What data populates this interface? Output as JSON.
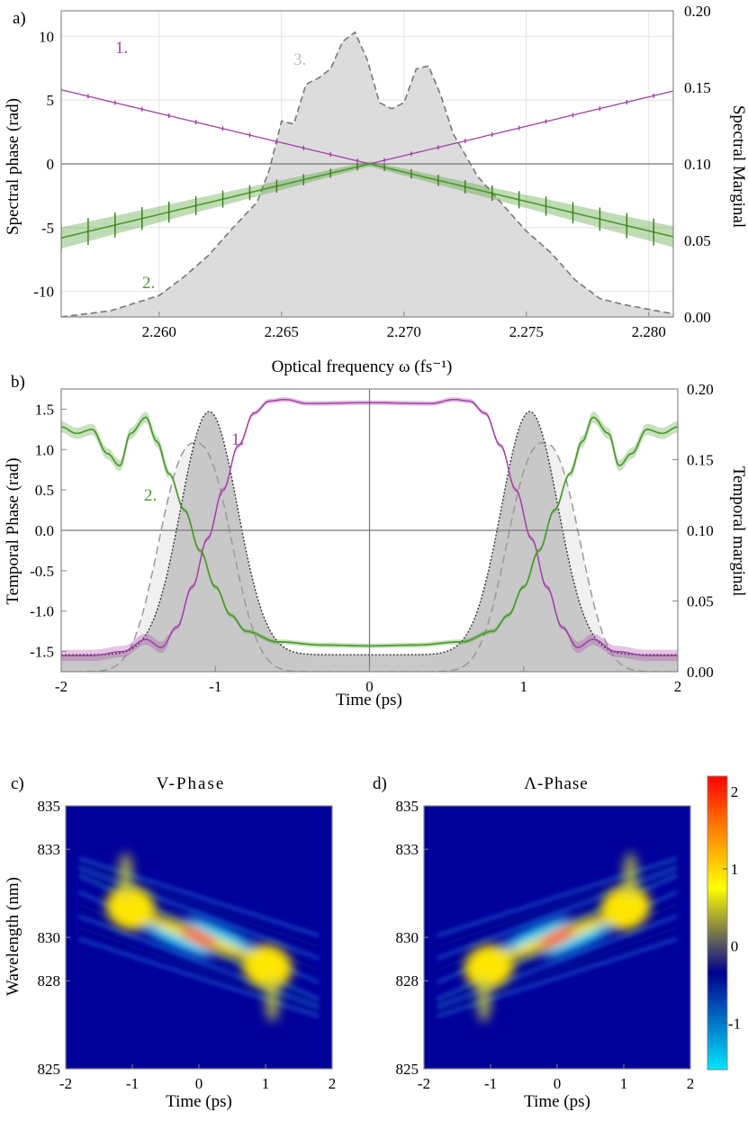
{
  "chart_data": [
    {
      "panel": "a)",
      "type": "line",
      "xlabel": "Optical frequency ω (fs⁻¹)",
      "ylabel": "Spectral phase (rad)",
      "y2label": "Spectral Marginal",
      "xlim": [
        2.256,
        2.281
      ],
      "ylim": [
        -12,
        12
      ],
      "y2lim": [
        0.0,
        0.2
      ],
      "xticks": [
        "2.260",
        "2.265",
        "2.270",
        "2.275",
        "2.280"
      ],
      "yticks": [
        "10",
        "5",
        "0",
        "-5",
        "-10"
      ],
      "y2ticks": [
        "0.20",
        "0.15",
        "0.10",
        "0.05",
        "0.00"
      ],
      "grid": true,
      "series": [
        {
          "name": "1.",
          "color": "#a23fa5",
          "center": 2.2686,
          "slope": 960,
          "side": "v"
        },
        {
          "name": "2.",
          "color": "#4a9a2a",
          "center": 2.2686,
          "slope": 960,
          "side": "lambda"
        },
        {
          "name": "3.",
          "color": "#888888",
          "x": [
            2.256,
            2.258,
            2.26,
            2.261,
            2.262,
            2.263,
            2.264,
            2.2645,
            2.265,
            2.2655,
            2.266,
            2.2665,
            2.267,
            2.2675,
            2.268,
            2.2685,
            2.269,
            2.2695,
            2.27,
            2.2705,
            2.271,
            2.2715,
            2.272,
            2.273,
            2.274,
            2.275,
            2.276,
            2.277,
            2.278,
            2.279,
            2.281
          ],
          "y": [
            0.0,
            0.004,
            0.014,
            0.026,
            0.04,
            0.058,
            0.075,
            0.096,
            0.128,
            0.126,
            0.152,
            0.156,
            0.162,
            0.18,
            0.186,
            0.168,
            0.14,
            0.136,
            0.14,
            0.162,
            0.164,
            0.145,
            0.12,
            0.092,
            0.074,
            0.056,
            0.042,
            0.024,
            0.012,
            0.008,
            0.002
          ]
        }
      ]
    },
    {
      "panel": "b)",
      "type": "line",
      "xlabel": "Time (ps)",
      "ylabel": "Temporal Phase (rad)",
      "y2label": "Temporal marginal",
      "xlim": [
        -2,
        2
      ],
      "ylim": [
        -1.75,
        1.75
      ],
      "y2lim": [
        0.0,
        0.2
      ],
      "xticks": [
        "-2",
        "-1",
        "0",
        "1",
        "2"
      ],
      "yticks": [
        "1.5",
        "1.0",
        "0.5",
        "0.0",
        "-0.5",
        "-1.0",
        "-1.5"
      ],
      "y2ticks": [
        "0.20",
        "0.15",
        "0.10",
        "0.05",
        "0.00"
      ],
      "grid": false,
      "series": [
        {
          "name": "1.",
          "color": "#a23fa5",
          "x": [
            -2.0,
            -1.8,
            -1.6,
            -1.45,
            -1.35,
            -1.25,
            -1.15,
            -1.05,
            -0.95,
            -0.85,
            -0.75,
            -0.65,
            -0.55,
            -0.4,
            0.0,
            0.4,
            0.55,
            0.65,
            0.75,
            0.85,
            0.95,
            1.05,
            1.15,
            1.25,
            1.35,
            1.45,
            1.6,
            1.8,
            2.0
          ],
          "y": [
            -1.55,
            -1.55,
            -1.5,
            -1.35,
            -1.45,
            -1.2,
            -0.7,
            -0.1,
            0.5,
            1.05,
            1.45,
            1.6,
            1.62,
            1.57,
            1.58,
            1.57,
            1.62,
            1.6,
            1.45,
            1.05,
            0.5,
            -0.1,
            -0.7,
            -1.2,
            -1.45,
            -1.35,
            -1.5,
            -1.55,
            -1.55
          ]
        },
        {
          "name": "2.",
          "color": "#4a9a2a",
          "x": [
            -2.0,
            -1.9,
            -1.8,
            -1.7,
            -1.62,
            -1.55,
            -1.45,
            -1.38,
            -1.3,
            -1.2,
            -1.1,
            -1.0,
            -0.9,
            -0.8,
            -0.6,
            -0.3,
            0.0,
            0.3,
            0.6,
            0.8,
            0.9,
            1.0,
            1.1,
            1.2,
            1.3,
            1.38,
            1.45,
            1.55,
            1.62,
            1.7,
            1.8,
            1.9,
            2.0
          ],
          "y": [
            1.28,
            1.2,
            1.25,
            0.95,
            0.8,
            1.2,
            1.4,
            1.1,
            0.7,
            0.25,
            -0.25,
            -0.7,
            -1.05,
            -1.25,
            -1.38,
            -1.42,
            -1.43,
            -1.42,
            -1.38,
            -1.25,
            -1.05,
            -0.7,
            -0.25,
            0.25,
            0.7,
            1.1,
            1.4,
            1.2,
            0.8,
            0.95,
            1.25,
            1.2,
            1.28
          ]
        }
      ],
      "marginals": {
        "center_peak_x": 1.04,
        "center_peak_value": 0.172,
        "dashed_peak_x": 1.13,
        "dashed_peak_value": 0.162
      }
    },
    {
      "panel": "c)",
      "type": "heatmap",
      "title": "V-Phase",
      "xlabel": "Time (ps)",
      "ylabel": "Wavelength (nm)",
      "xticks": [
        "-2",
        "-1",
        "0",
        "1",
        "2"
      ],
      "yticks": [
        "835",
        "833",
        "830",
        "828",
        "825"
      ],
      "orientation": "v"
    },
    {
      "panel": "d)",
      "type": "heatmap",
      "title": "Λ-Phase",
      "xlabel": "Time (ps)",
      "xticks": [
        "-2",
        "-1",
        "0",
        "1",
        "2"
      ],
      "yticks": [
        "835",
        "833",
        "830",
        "828",
        "825"
      ],
      "orientation": "lambda"
    }
  ],
  "colorbar": {
    "ticks": [
      "2",
      "1",
      "0",
      "-1"
    ],
    "colors": [
      "#00e5ff",
      "#00008f",
      "#ffff00",
      "#ff8000",
      "#ff0000"
    ]
  }
}
